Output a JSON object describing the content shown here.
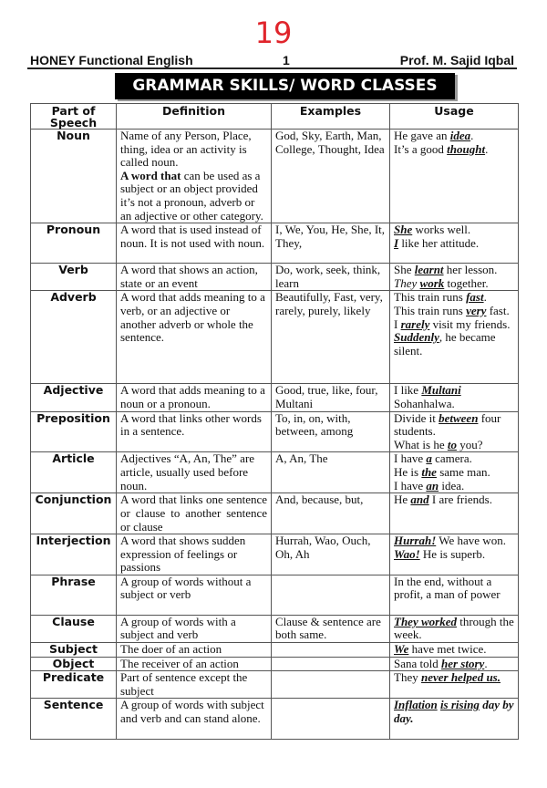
{
  "page_number": "19",
  "header": {
    "left": "HONEY Functional English",
    "center": "1",
    "right": "Prof. M. Sajid Iqbal"
  },
  "banner": "GRAMMAR SKILLS/ WORD CLASSES",
  "columns": [
    "Part of Speech",
    "Definition",
    "Examples",
    "Usage"
  ],
  "rows": [
    {
      "pos": "Noun",
      "definition": [
        {
          "t": "Name of any Person, Place, thing, idea or an activity is called noun."
        },
        {
          "br": true
        },
        {
          "t": "A word that",
          "s": "b"
        },
        {
          "t": " can be used as a subject or an object provided it’s not a pronoun, adverb or an adjective or other category."
        }
      ],
      "examples": "God, Sky, Earth, Man, College, Thought, Idea",
      "usage": [
        [
          {
            "t": "He gave an "
          },
          {
            "t": "idea",
            "s": "em"
          },
          {
            "t": "."
          }
        ],
        [
          {
            "t": "It’s a good "
          },
          {
            "t": "thought",
            "s": "em"
          },
          {
            "t": "."
          }
        ]
      ]
    },
    {
      "pos": "Pronoun",
      "definition": [
        {
          "t": "A word that is used instead of noun. It is not used with noun."
        }
      ],
      "examples": "I, We, You, He, She, It, They,",
      "usage": [
        [
          {
            "t": "She",
            "s": "em"
          },
          {
            "t": " works well."
          }
        ],
        [
          {
            "t": "I",
            "s": "em"
          },
          {
            "t": " like her attitude."
          }
        ]
      ]
    },
    {
      "pos": "Verb",
      "definition": [
        {
          "t": "A word that shows an action, state or an event"
        }
      ],
      "examples": "Do, work, seek, think, learn",
      "usage": [
        [
          {
            "t": "She "
          },
          {
            "t": "learnt",
            "s": "em"
          },
          {
            "t": " her lesson."
          }
        ],
        [
          {
            "t": "They ",
            "s": "it"
          },
          {
            "t": "work",
            "s": "em"
          },
          {
            "t": " together."
          }
        ]
      ]
    },
    {
      "pos": "Adverb",
      "definition": [
        {
          "t": "A word that adds meaning to a verb, or an adjective or another adverb or whole the sentence."
        }
      ],
      "examples": "Beautifully, Fast, very, rarely, purely, likely",
      "usage": [
        [
          {
            "t": "This train runs "
          },
          {
            "t": "fast",
            "s": "em"
          },
          {
            "t": "."
          }
        ],
        [
          {
            "t": "This train runs "
          },
          {
            "t": "very",
            "s": "em"
          },
          {
            "t": " fast."
          }
        ],
        [
          {
            "t": "I "
          },
          {
            "t": "rarely",
            "s": "em"
          },
          {
            "t": " visit my friends."
          }
        ],
        [
          {
            "t": "Suddenly",
            "s": "em"
          },
          {
            "t": ", he became silent."
          }
        ]
      ]
    },
    {
      "pos": "Adjective",
      "definition": [
        {
          "t": "A word that adds meaning to a noun or a pronoun."
        }
      ],
      "examples": "Good, true, like, four, Multani",
      "usage": [
        [
          {
            "t": "I like "
          },
          {
            "t": "Multani",
            "s": "em"
          },
          {
            "t": " Sohanhalwa."
          }
        ]
      ]
    },
    {
      "pos": "Preposition",
      "definition": [
        {
          "t": "A word that links other words in a sentence."
        }
      ],
      "examples": "To, in, on, with, between, among",
      "usage": [
        [
          {
            "t": "Divide it "
          },
          {
            "t": "between",
            "s": "em"
          },
          {
            "t": " four students."
          }
        ],
        [
          {
            "t": "What is he "
          },
          {
            "t": "to",
            "s": "em"
          },
          {
            "t": " you?"
          }
        ]
      ]
    },
    {
      "pos": "Article",
      "definition": [
        {
          "t": "Adjectives “A, An, The” are article, usually used before noun."
        }
      ],
      "examples": "A, An, The",
      "usage": [
        [
          {
            "t": "I have "
          },
          {
            "t": "a",
            "s": "em"
          },
          {
            "t": " camera."
          }
        ],
        [
          {
            "t": "He is "
          },
          {
            "t": "the",
            "s": "em"
          },
          {
            "t": " same man."
          }
        ],
        [
          {
            "t": "I have "
          },
          {
            "t": "an",
            "s": "em"
          },
          {
            "t": " idea."
          }
        ]
      ]
    },
    {
      "pos": "Conjunction",
      "definition": [
        {
          "t": "A word that links one sentence or clause to another sentence or clause"
        }
      ],
      "justify": true,
      "examples": "And, because, but,",
      "usage": [
        [
          {
            "t": "He "
          },
          {
            "t": "and",
            "s": "em"
          },
          {
            "t": " I are friends."
          }
        ]
      ]
    },
    {
      "pos": "Interjection",
      "definition": [
        {
          "t": "A word that shows sudden expression of feelings or passions"
        }
      ],
      "examples": "Hurrah, Wao, Ouch, Oh, Ah",
      "usage": [
        [
          {
            "t": "Hurrah!",
            "s": "em"
          },
          {
            "t": " We have won."
          }
        ],
        [
          {
            "t": "Wao!",
            "s": "em"
          },
          {
            "t": " He is superb."
          }
        ]
      ]
    },
    {
      "pos": "Phrase",
      "definition": [
        {
          "t": "A group of words without a subject or verb"
        }
      ],
      "examples": "",
      "usage": [
        [
          {
            "t": "In the end, without a profit, a man of power"
          }
        ]
      ]
    },
    {
      "pos": "Clause",
      "definition": [
        {
          "t": "A group of words with a subject and verb"
        }
      ],
      "examples": "Clause & sentence are both same.",
      "usage": [
        [
          {
            "t": "They worked",
            "s": "em"
          },
          {
            "t": " through the week."
          }
        ]
      ]
    },
    {
      "pos": "Subject",
      "definition": [
        {
          "t": "The doer of an action"
        }
      ],
      "examples": "",
      "usage": [
        [
          {
            "t": "We",
            "s": "em"
          },
          {
            "t": " have met twice."
          }
        ]
      ]
    },
    {
      "pos": "Object",
      "definition": [
        {
          "t": "The receiver of an action"
        }
      ],
      "examples": "",
      "usage": [
        [
          {
            "t": "Sana told "
          },
          {
            "t": "her story",
            "s": "em"
          },
          {
            "t": "."
          }
        ]
      ]
    },
    {
      "pos": "Predicate",
      "definition": [
        {
          "t": "Part of sentence except the subject"
        }
      ],
      "examples": "",
      "usage": [
        [
          {
            "t": "They "
          },
          {
            "t": "never helped us.",
            "s": "em"
          }
        ]
      ]
    },
    {
      "pos": "Sentence",
      "definition": [
        {
          "t": "A group of words with subject and verb and can stand alone."
        }
      ],
      "examples": "",
      "usage": [
        [
          {
            "t": "Inflation",
            "s": "em"
          },
          {
            "t": " ",
            "s": "b"
          },
          {
            "t": "is rising",
            "s": "em"
          },
          {
            "t": " day by day.",
            "s": "b it"
          }
        ]
      ]
    }
  ]
}
